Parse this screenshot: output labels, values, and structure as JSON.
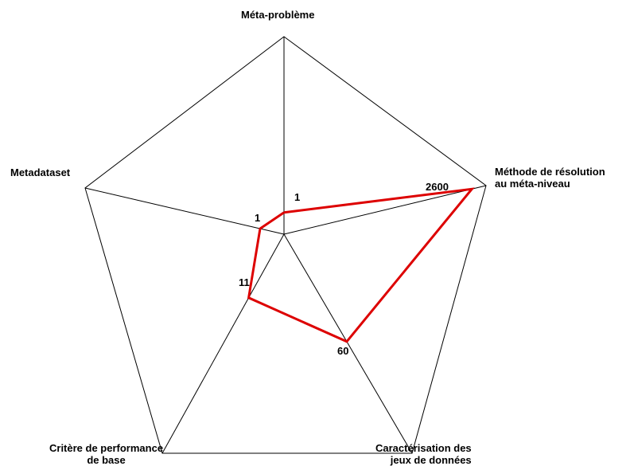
{
  "chart_data": {
    "type": "radar",
    "axes": [
      "Méta-problème",
      "Méthode de résolution\nau méta-niveau",
      "Caractérisation des\njeux de données",
      "Critère de performance\nde base",
      "Metadataset"
    ],
    "series": [
      {
        "values": [
          1,
          2600,
          60,
          11,
          1
        ],
        "value_labels": [
          "1",
          "2600",
          "60",
          "11",
          "1"
        ]
      }
    ],
    "grid": false,
    "legend": "none",
    "line_color": "#dd0000",
    "frame_color": "#000000"
  }
}
